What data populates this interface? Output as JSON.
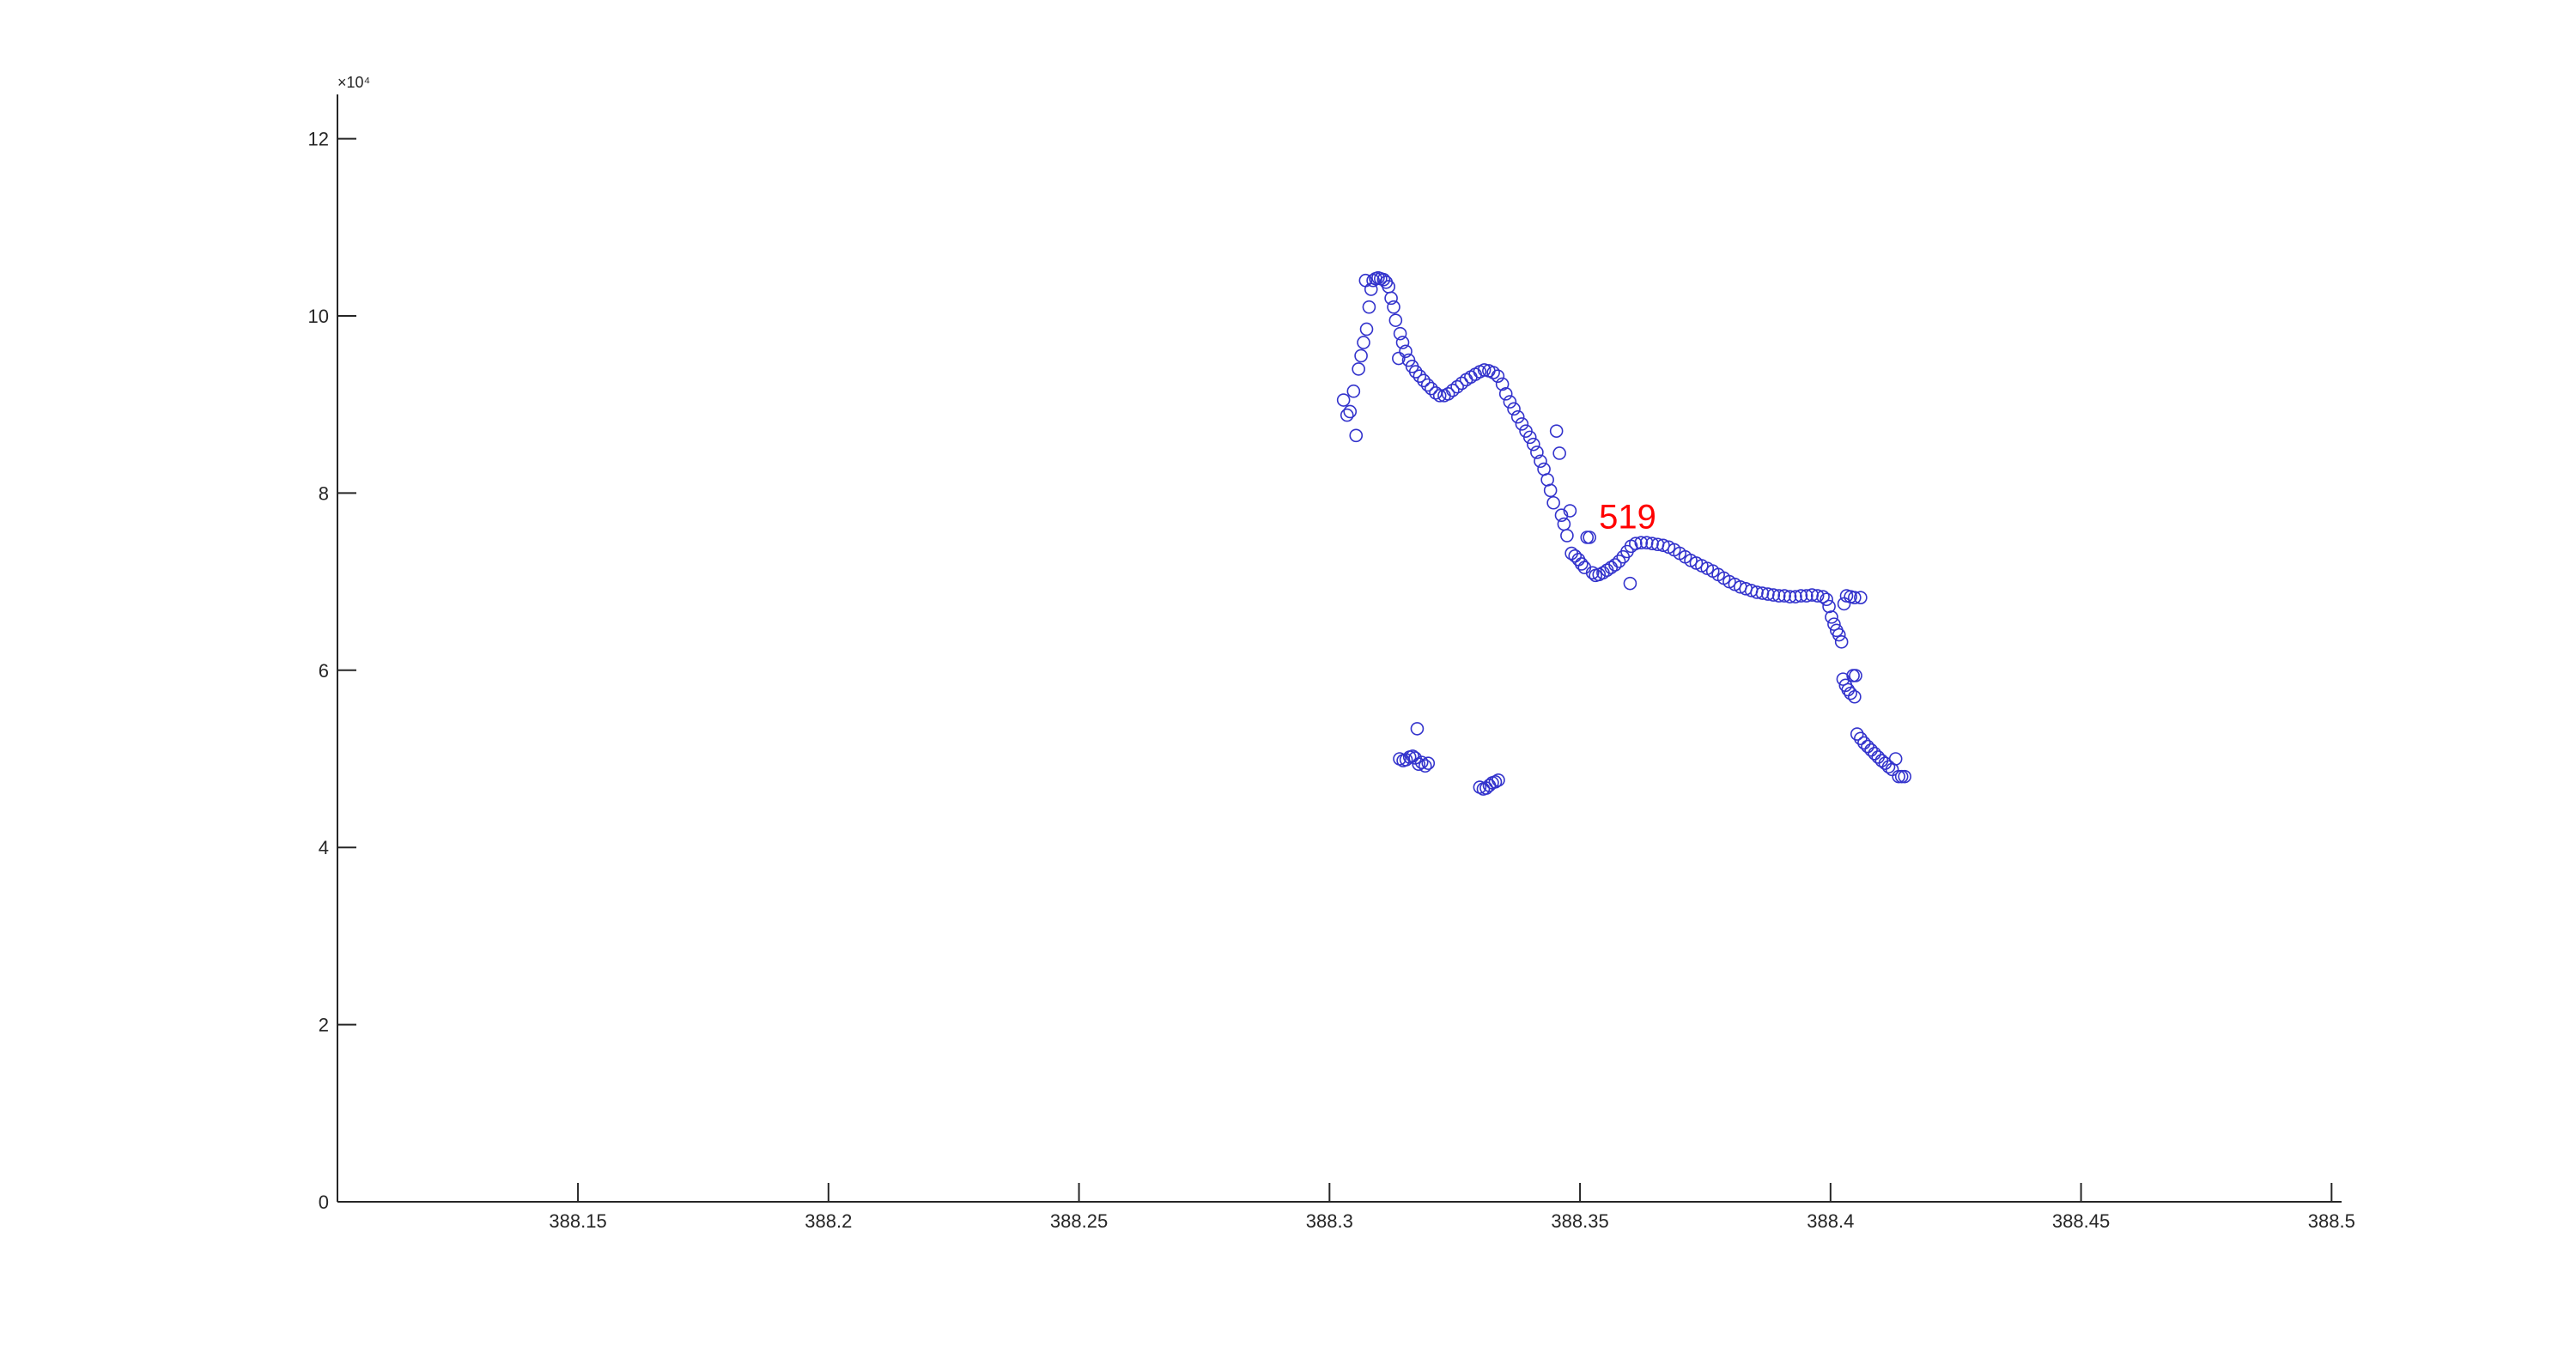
{
  "chart_data": {
    "type": "scatter",
    "title": "",
    "xlabel": "",
    "ylabel": "",
    "xlim": [
      388.102,
      388.502
    ],
    "ylim": [
      0,
      125000
    ],
    "x_ticks": [
      388.15,
      388.2,
      388.25,
      388.3,
      388.35,
      388.4,
      388.45,
      388.5
    ],
    "x_tick_labels": [
      "388.15",
      "388.2",
      "388.25",
      "388.3",
      "388.35",
      "388.4",
      "388.45",
      "388.5"
    ],
    "y_ticks": [
      0,
      20000,
      40000,
      60000,
      80000,
      100000,
      120000
    ],
    "y_tick_labels": [
      "0",
      "2",
      "4",
      "6",
      "8",
      "10",
      "12"
    ],
    "y_exponent_label": "×10⁴",
    "grid": false,
    "marker": "circle",
    "colors": {
      "marker": "#3333cc",
      "annotation": "#ff0000",
      "axis": "#262626",
      "background": "#ffffff"
    },
    "annotation": {
      "text": "519",
      "x": 388.3595,
      "y": 76000
    },
    "series": [
      {
        "points": [
          [
            388.3028,
            90500
          ],
          [
            388.3035,
            88800
          ],
          [
            388.3041,
            89200
          ],
          [
            388.3048,
            91500
          ],
          [
            388.3053,
            86500
          ],
          [
            388.3058,
            94000
          ],
          [
            388.3063,
            95500
          ],
          [
            388.3068,
            97000
          ],
          [
            388.3072,
            104000
          ],
          [
            388.3074,
            98500
          ],
          [
            388.3079,
            101000
          ],
          [
            388.3083,
            103000
          ],
          [
            388.3087,
            104000
          ],
          [
            388.3092,
            104200
          ],
          [
            388.3097,
            104300
          ],
          [
            388.3102,
            104200
          ],
          [
            388.3108,
            104100
          ],
          [
            388.3113,
            103800
          ],
          [
            388.3118,
            103300
          ],
          [
            388.3123,
            102000
          ],
          [
            388.3128,
            101000
          ],
          [
            388.3132,
            99500
          ],
          [
            388.3138,
            95200
          ],
          [
            388.3141,
            98000
          ],
          [
            388.3146,
            97000
          ],
          [
            388.3152,
            96000
          ],
          [
            388.3158,
            95000
          ],
          [
            388.3165,
            94300
          ],
          [
            388.3172,
            93700
          ],
          [
            388.318,
            93200
          ],
          [
            388.3188,
            92700
          ],
          [
            388.3196,
            92200
          ],
          [
            388.3203,
            91800
          ],
          [
            388.3212,
            91300
          ],
          [
            388.322,
            91000
          ],
          [
            388.3229,
            91000
          ],
          [
            388.3237,
            91200
          ],
          [
            388.3246,
            91600
          ],
          [
            388.3255,
            92000
          ],
          [
            388.3264,
            92400
          ],
          [
            388.3273,
            92800
          ],
          [
            388.3282,
            93100
          ],
          [
            388.3291,
            93400
          ],
          [
            388.33,
            93700
          ],
          [
            388.3309,
            93900
          ],
          [
            388.3318,
            93800
          ],
          [
            388.3327,
            93600
          ],
          [
            388.3336,
            93200
          ],
          [
            388.3345,
            92300
          ],
          [
            388.3352,
            91200
          ],
          [
            388.336,
            90300
          ],
          [
            388.3368,
            89500
          ],
          [
            388.3376,
            88600
          ],
          [
            388.3384,
            87800
          ],
          [
            388.3392,
            87000
          ],
          [
            388.34,
            86300
          ],
          [
            388.3407,
            85500
          ],
          [
            388.3414,
            84600
          ],
          [
            388.3421,
            83600
          ],
          [
            388.3428,
            82700
          ],
          [
            388.3435,
            81500
          ],
          [
            388.3441,
            80300
          ],
          [
            388.3447,
            78900
          ],
          [
            388.3453,
            87000
          ],
          [
            388.3459,
            84500
          ],
          [
            388.3463,
            77500
          ],
          [
            388.3468,
            76500
          ],
          [
            388.3474,
            75200
          ],
          [
            388.348,
            78000
          ],
          [
            388.3483,
            73200
          ],
          [
            388.349,
            72900
          ],
          [
            388.3497,
            72500
          ],
          [
            388.3503,
            72000
          ],
          [
            388.3509,
            71600
          ],
          [
            388.3514,
            75000
          ],
          [
            388.3519,
            75000
          ],
          [
            388.3525,
            71000
          ],
          [
            388.3531,
            70700
          ],
          [
            388.3538,
            70800
          ],
          [
            388.3546,
            71000
          ],
          [
            388.3554,
            71300
          ],
          [
            388.3562,
            71600
          ],
          [
            388.357,
            71900
          ],
          [
            388.3578,
            72300
          ],
          [
            388.3586,
            72800
          ],
          [
            388.3594,
            73400
          ],
          [
            388.3602,
            74000
          ],
          [
            388.36,
            69800
          ],
          [
            388.3611,
            74300
          ],
          [
            388.3622,
            74400
          ],
          [
            388.3633,
            74400
          ],
          [
            388.3644,
            74300
          ],
          [
            388.3655,
            74200
          ],
          [
            388.3666,
            74100
          ],
          [
            388.3677,
            73900
          ],
          [
            388.3688,
            73600
          ],
          [
            388.3699,
            73200
          ],
          [
            388.371,
            72800
          ],
          [
            388.3721,
            72400
          ],
          [
            388.3732,
            72100
          ],
          [
            388.3743,
            71800
          ],
          [
            388.3754,
            71500
          ],
          [
            388.3765,
            71200
          ],
          [
            388.3776,
            70800
          ],
          [
            388.3787,
            70400
          ],
          [
            388.3798,
            70000
          ],
          [
            388.3809,
            69700
          ],
          [
            388.382,
            69400
          ],
          [
            388.3831,
            69200
          ],
          [
            388.3842,
            69000
          ],
          [
            388.3853,
            68800
          ],
          [
            388.3864,
            68700
          ],
          [
            388.3875,
            68600
          ],
          [
            388.3886,
            68500
          ],
          [
            388.3897,
            68400
          ],
          [
            388.3908,
            68400
          ],
          [
            388.3919,
            68300
          ],
          [
            388.393,
            68300
          ],
          [
            388.3941,
            68400
          ],
          [
            388.3952,
            68400
          ],
          [
            388.3963,
            68500
          ],
          [
            388.3974,
            68400
          ],
          [
            388.3985,
            68300
          ],
          [
            388.3992,
            68000
          ],
          [
            388.3997,
            67200
          ],
          [
            388.4002,
            66000
          ],
          [
            388.4007,
            65200
          ],
          [
            388.4012,
            64500
          ],
          [
            388.4017,
            64000
          ],
          [
            388.4022,
            63200
          ],
          [
            388.4027,
            67500
          ],
          [
            388.4032,
            68400
          ],
          [
            388.404,
            68300
          ],
          [
            388.4048,
            68200
          ],
          [
            388.406,
            68200
          ],
          [
            388.4025,
            59000
          ],
          [
            388.403,
            58300
          ],
          [
            388.4035,
            57800
          ],
          [
            388.404,
            57400
          ],
          [
            388.4045,
            59400
          ],
          [
            388.405,
            59400
          ],
          [
            388.4048,
            57000
          ],
          [
            388.4053,
            52800
          ],
          [
            388.406,
            52300
          ],
          [
            388.4067,
            51800
          ],
          [
            388.4074,
            51400
          ],
          [
            388.4081,
            51000
          ],
          [
            388.4088,
            50600
          ],
          [
            388.4095,
            50200
          ],
          [
            388.4102,
            49800
          ],
          [
            388.4109,
            49500
          ],
          [
            388.4116,
            49100
          ],
          [
            388.4123,
            48800
          ],
          [
            388.413,
            50000
          ],
          [
            388.4136,
            48000
          ],
          [
            388.4142,
            48000
          ],
          [
            388.4148,
            48000
          ],
          [
            388.314,
            50000
          ],
          [
            388.3147,
            49800
          ],
          [
            388.3153,
            49900
          ],
          [
            388.316,
            50200
          ],
          [
            388.3166,
            50300
          ],
          [
            388.3171,
            50100
          ],
          [
            388.3175,
            53400
          ],
          [
            388.3178,
            49400
          ],
          [
            388.3184,
            49600
          ],
          [
            388.3191,
            49200
          ],
          [
            388.3197,
            49500
          ],
          [
            388.33,
            46800
          ],
          [
            388.3307,
            46600
          ],
          [
            388.3313,
            46700
          ],
          [
            388.3319,
            47000
          ],
          [
            388.3325,
            47300
          ],
          [
            388.3331,
            47400
          ],
          [
            388.3337,
            47600
          ]
        ]
      }
    ]
  }
}
